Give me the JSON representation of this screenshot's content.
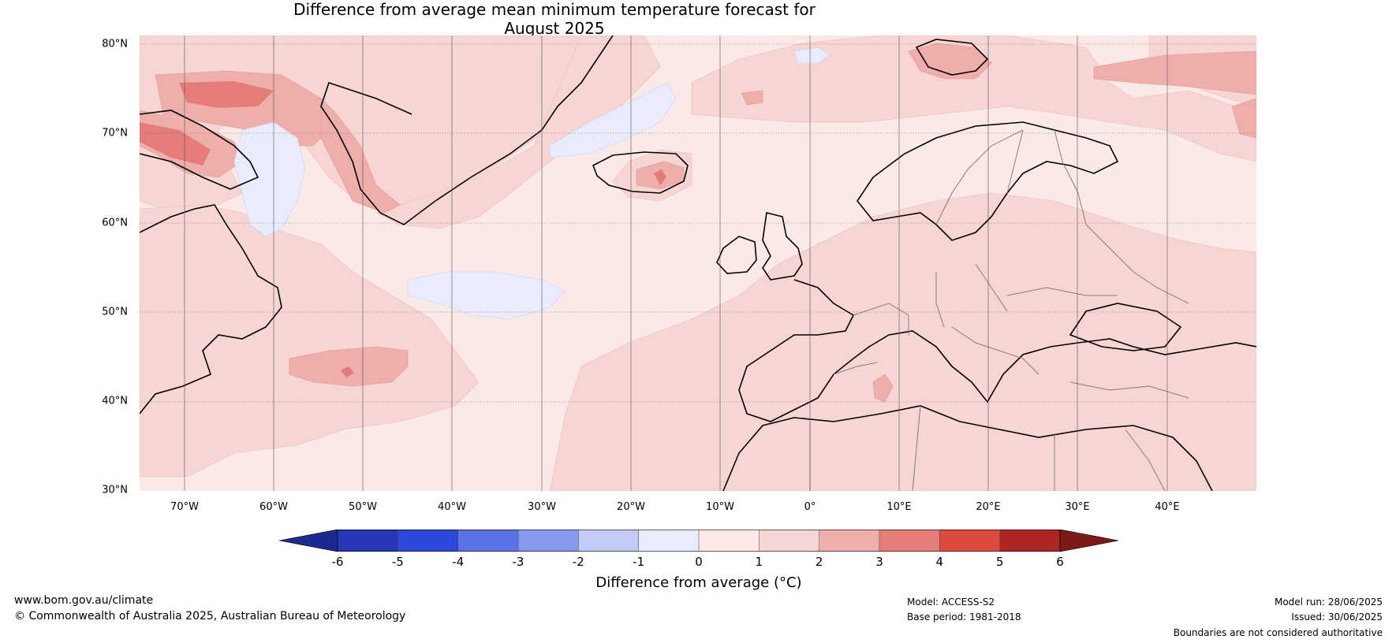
{
  "title_line1": "Difference from average mean minimum temperature forecast for",
  "title_line2": "August 2025",
  "latitude_labels": [
    "80°N",
    "70°N",
    "60°N",
    "50°N",
    "40°N",
    "30°N"
  ],
  "longitude_labels": [
    "70°W",
    "60°W",
    "50°W",
    "40°W",
    "30°W",
    "20°W",
    "10°W",
    "0°",
    "10°E",
    "20°E",
    "30°E",
    "40°E"
  ],
  "colorbar": {
    "label": "Difference from average (°C)",
    "ticks": [
      "-6",
      "-5",
      "-4",
      "-3",
      "-2",
      "-1",
      "0",
      "1",
      "2",
      "3",
      "4",
      "5",
      "6"
    ],
    "colors": [
      "#1c2a8f",
      "#2537b5",
      "#2e48db",
      "#5a72e6",
      "#8799ec",
      "#c1cbf5",
      "#e8ecfc",
      "#fbe9e7",
      "#f6d5d2",
      "#eeaeab",
      "#e67c78",
      "#dd4a40",
      "#ad2623",
      "#7a1b1a"
    ]
  },
  "map": {
    "extent_lon": [
      -75,
      50
    ],
    "extent_lat": [
      30,
      81
    ],
    "region": "North Atlantic and Europe"
  },
  "footer": {
    "website": "www.bom.gov.au/climate",
    "copyright": "© Commonwealth of Australia 2025, Australian Bureau of Meteorology",
    "model": "Model: ACCESS-S2",
    "base_period": "Base period: 1981-2018",
    "model_run": "Model run: 28/06/2025",
    "issued": "Issued: 30/06/2025",
    "disclaimer": "Boundaries are not considered authoritative"
  }
}
